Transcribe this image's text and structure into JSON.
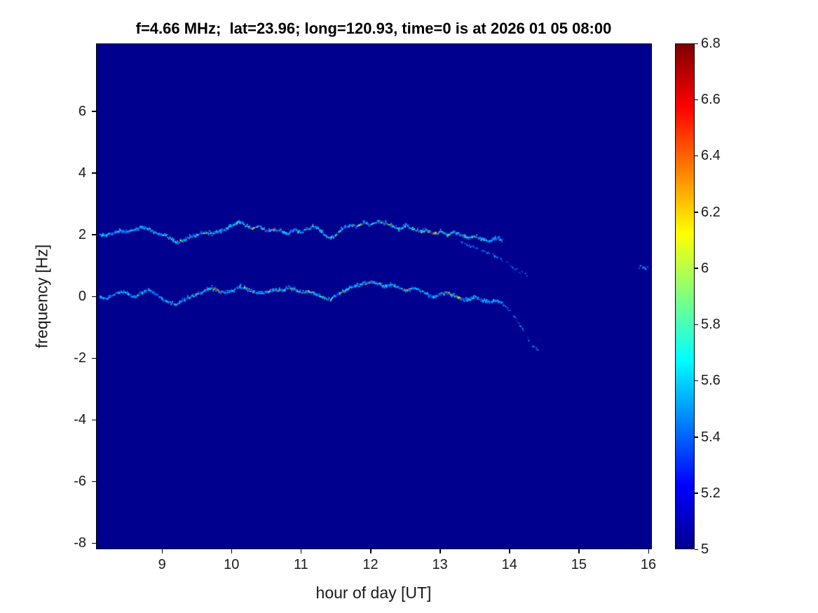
{
  "figure": {
    "background": "#ffffff"
  },
  "chart_data": {
    "type": "heatmap",
    "title": "f=4.66 MHz;  lat=23.96; long=120.93, time=0 is at 2026 01 05 08:00",
    "xlabel": "hour of day [UT]",
    "ylabel": "frequency [Hz]",
    "xlim": [
      8.05,
      16.05
    ],
    "ylim": [
      -8.2,
      8.2
    ],
    "xticks": [
      9,
      10,
      11,
      12,
      13,
      14,
      15,
      16
    ],
    "yticks": [
      -8,
      -6,
      -4,
      -2,
      0,
      2,
      4,
      6
    ],
    "grid": false,
    "background_value": 5,
    "background_color": "#00008f",
    "colorbar": {
      "min": 5,
      "max": 6.8,
      "tick_values": [
        5,
        5.2,
        5.4,
        5.6,
        5.8,
        6,
        6.2,
        6.4,
        6.6,
        6.8
      ],
      "tick_labels": [
        "5",
        "5.2",
        "5.4",
        "5.6",
        "5.8",
        "6",
        "6.2",
        "6.4",
        "6.6",
        "6.8"
      ]
    },
    "colormap": {
      "name": "jet",
      "stops": [
        [
          0,
          "#00008f"
        ],
        [
          0.125,
          "#0000ff"
        ],
        [
          0.375,
          "#00ffff"
        ],
        [
          0.625,
          "#ffff00"
        ],
        [
          0.875,
          "#ff0000"
        ],
        [
          1,
          "#800000"
        ]
      ]
    },
    "series": [
      {
        "name": "upper-doppler-trace",
        "style": "dense",
        "x0": 8.1,
        "dx": 0.1,
        "y": [
          2.0,
          2.02,
          2.08,
          2.15,
          2.1,
          2.18,
          2.28,
          2.2,
          2.1,
          2.0,
          1.92,
          1.78,
          1.82,
          1.95,
          2.02,
          2.1,
          2.05,
          2.12,
          2.2,
          2.32,
          2.45,
          2.3,
          2.22,
          2.28,
          2.12,
          2.2,
          2.15,
          2.05,
          2.18,
          2.1,
          2.22,
          2.3,
          2.08,
          1.9,
          2.0,
          2.25,
          2.35,
          2.28,
          2.4,
          2.35,
          2.45,
          2.4,
          2.3,
          2.2,
          2.32,
          2.22,
          2.12,
          2.16,
          2.05,
          2.12,
          2.02,
          2.1,
          2.0,
          1.92,
          1.96,
          1.86,
          1.8,
          1.9,
          1.85
        ]
      },
      {
        "name": "upper-trace-descending-branch",
        "style": "sparse",
        "x0": 13.3,
        "dx": 0.05,
        "y": [
          1.75,
          1.7,
          1.68,
          1.62,
          1.6,
          1.55,
          1.5,
          1.45,
          1.42,
          1.38,
          1.3,
          1.25,
          1.18,
          1.1,
          1.05,
          0.95,
          0.88,
          0.8,
          0.75,
          0.72
        ]
      },
      {
        "name": "lower-doppler-trace",
        "style": "dense",
        "x0": 8.1,
        "dx": 0.1,
        "y": [
          0.0,
          -0.04,
          0.08,
          0.18,
          0.1,
          0.0,
          0.14,
          0.24,
          0.1,
          -0.08,
          -0.18,
          -0.24,
          -0.1,
          0.0,
          0.1,
          0.2,
          0.3,
          0.2,
          0.12,
          0.2,
          0.34,
          0.28,
          0.18,
          0.1,
          0.16,
          0.26,
          0.2,
          0.3,
          0.24,
          0.14,
          0.2,
          0.1,
          0.0,
          -0.1,
          0.05,
          0.2,
          0.3,
          0.38,
          0.44,
          0.5,
          0.44,
          0.34,
          0.4,
          0.3,
          0.2,
          0.3,
          0.2,
          0.1,
          0.0,
          0.1,
          0.14,
          0.04,
          -0.06,
          -0.1,
          0.0,
          -0.1,
          -0.18,
          -0.12,
          -0.2
        ]
      },
      {
        "name": "lower-trace-descending-tail",
        "style": "sparse",
        "x0": 13.9,
        "dx": 0.04,
        "y": [
          -0.25,
          -0.3,
          -0.4,
          -0.5,
          -0.62,
          -0.75,
          -0.9,
          -1.05,
          -1.2,
          -1.35,
          -1.5,
          -1.6,
          -1.68,
          -1.72
        ]
      },
      {
        "name": "isolated-blip",
        "style": "sparse",
        "x0": 15.85,
        "dx": 0.05,
        "y": [
          0.95,
          1.0,
          0.9,
          0.95
        ]
      }
    ]
  }
}
